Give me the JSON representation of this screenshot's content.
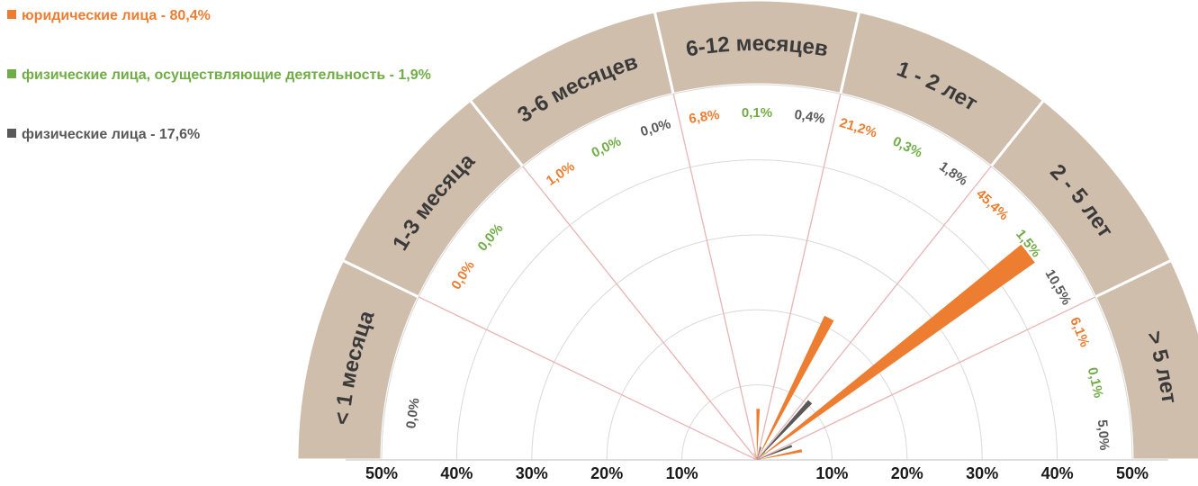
{
  "legend": [
    {
      "label": "юридические лица - 80,4%",
      "color": "#ED7D31"
    },
    {
      "label": "физические лица, осуществляющие деятельность - 1,9%",
      "color": "#70AD47"
    },
    {
      "label": "физические лица - 17,6%",
      "color": "#595959"
    }
  ],
  "chart_data": {
    "type": "polar-bar",
    "rmax": 50,
    "series": [
      {
        "name": "юридические лица",
        "color": "#ED7D31",
        "values": [
          0.0,
          0.0,
          1.0,
          6.8,
          21.2,
          45.4,
          6.1
        ]
      },
      {
        "name": "физические лица, осуществляющие деятельность",
        "color": "#70AD47",
        "values": [
          0.0,
          0.0,
          0.0,
          0.1,
          0.3,
          1.5,
          0.1
        ]
      },
      {
        "name": "физические лица",
        "color": "#595959",
        "values": [
          0.0,
          0.0,
          0.0,
          0.4,
          1.8,
          10.5,
          5.0
        ]
      }
    ],
    "categories": [
      "< 1 месяца",
      "1-3 месяца",
      "3-6 месяцев",
      "6-12 месяцев",
      "1 - 2 лет",
      "2 - 5 лет",
      "> 5 лет"
    ],
    "value_labels": [
      [
        "0,0%"
      ],
      [
        "0,0%",
        "0,0%"
      ],
      [
        "1,0%",
        "0,0%",
        "0,0%"
      ],
      [
        "6,8%",
        "0,1%",
        "0,4%"
      ],
      [
        "21,2%",
        "0,3%",
        "1,8%"
      ],
      [
        "45,4%",
        "1,5%",
        "10,5%"
      ],
      [
        "6,1%",
        "0,1%",
        "5,0%"
      ]
    ],
    "axis_labels": [
      "50%",
      "40%",
      "30%",
      "20%",
      "10%",
      "10%",
      "20%",
      "30%",
      "40%",
      "50%"
    ],
    "ring_color": "#D0BEAC",
    "spoke_color": "#E8B4B4",
    "grid_color": "#D9D9D9"
  }
}
